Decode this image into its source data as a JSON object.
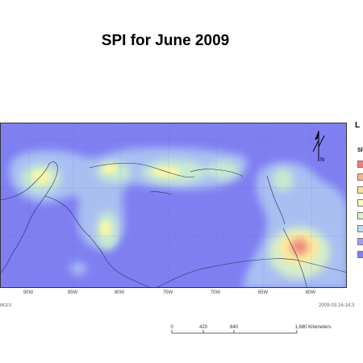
{
  "title": "SPI for June 2009",
  "legend": {
    "title": "L",
    "subtitle": "Sl",
    "swatches": [
      "#f57a7a",
      "#f9b384",
      "#fbe196",
      "#fcfcb8",
      "#d9f2c6",
      "#b9dcf2",
      "#9f9ff8",
      "#7f7ff3"
    ]
  },
  "map": {
    "background": "#7f7ff2",
    "longitude_labels": [
      "90W",
      "85W",
      "80W",
      "75W",
      "70W",
      "65W",
      "60W"
    ]
  },
  "footer": {
    "source": "MGFS",
    "date": "2009-03-16-14:3"
  },
  "scale": {
    "labels": [
      "0",
      "420",
      "840",
      "1,680 Kilometers"
    ]
  },
  "north_label": "N"
}
